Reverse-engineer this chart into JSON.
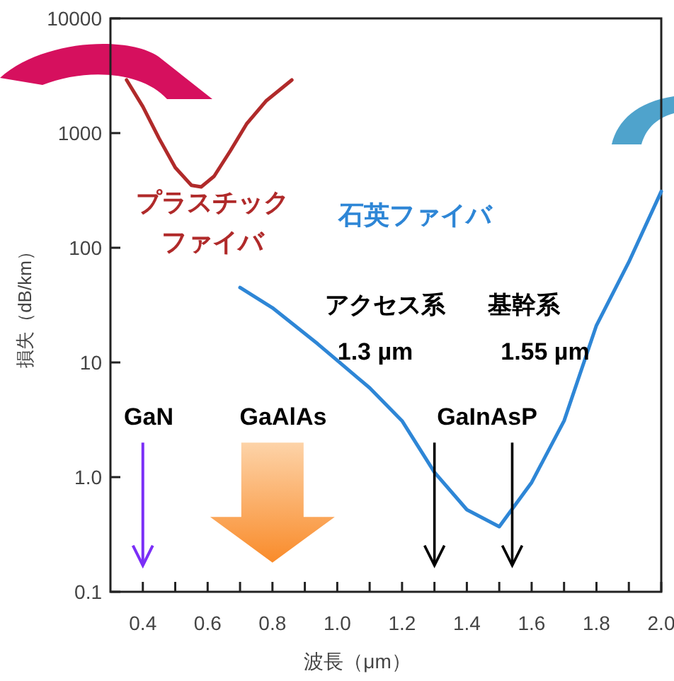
{
  "chart_data": {
    "type": "line",
    "xlabel": "波長（μm）",
    "ylabel": "損失（dB/km）",
    "log": "y",
    "grid": false,
    "line_style": "solid",
    "xlim": [
      0.3,
      2.0
    ],
    "ylim": [
      0.1,
      10000
    ],
    "xticks": [
      0.4,
      {
        "value": 0.5,
        "label": null
      },
      0.6,
      {
        "value": 0.7,
        "label": null
      },
      0.8,
      {
        "value": 0.9,
        "label": null
      },
      "1.0",
      {
        "value": 1.1,
        "label": null
      },
      1.2,
      {
        "value": 1.3,
        "label": null
      },
      1.4,
      {
        "value": 1.5,
        "label": null
      },
      1.6,
      {
        "value": 1.7,
        "label": null
      },
      1.8,
      {
        "value": 1.9,
        "label": null
      },
      "2.0"
    ],
    "yticks": [
      0.1,
      {
        "value": 1,
        "label": "1.0"
      },
      10,
      100,
      1000,
      10000
    ],
    "series": [
      {
        "name": "プラスチックファイバ",
        "color": "#b02a2a",
        "x": [
          0.35,
          0.4,
          0.45,
          0.5,
          0.55,
          0.58,
          0.62,
          0.67,
          0.72,
          0.78,
          0.86
        ],
        "values": [
          2900,
          1700,
          900,
          500,
          350,
          340,
          420,
          700,
          1200,
          1900,
          2900
        ]
      },
      {
        "name": "石英ファイバ",
        "color": "#2e86d6",
        "x": [
          0.7,
          0.8,
          0.94,
          1.1,
          1.2,
          1.3,
          1.4,
          1.5,
          1.6,
          1.7,
          1.8,
          1.9,
          2.0
        ],
        "values": [
          45,
          30,
          14.5,
          6,
          3.1,
          1.1,
          0.52,
          0.37,
          0.9,
          3.1,
          21,
          75,
          310
        ]
      }
    ],
    "annotations": [
      "アクセス系",
      "基幹系",
      "1.3 µm",
      "1.55 µm",
      "GaN",
      "GaAlAs",
      "GaInAsP"
    ]
  }
}
